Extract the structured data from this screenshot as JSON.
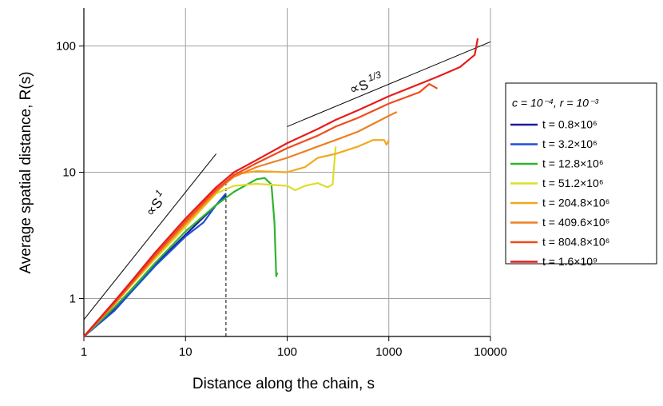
{
  "chart_data": {
    "type": "line",
    "log_x": true,
    "log_y": true,
    "grid": true,
    "x_label": "Distance along the chain, s",
    "y_label": "Average spatial distance, R(s)",
    "xlim": [
      1,
      10000
    ],
    "ylim": [
      0.5,
      200
    ],
    "xticks": [
      1,
      10,
      100,
      1000,
      10000
    ],
    "yticks": [
      1,
      10,
      100
    ],
    "legend_title": "c = 10⁻⁴, r = 10⁻³",
    "legend_position": "right",
    "series": [
      {
        "name": "t = 0.8×10⁶",
        "color": "#1a1a9c",
        "x": [
          1,
          2,
          3,
          5,
          10,
          20,
          25
        ],
        "values": [
          0.5,
          0.82,
          1.2,
          1.85,
          3.2,
          5.5,
          6.5
        ]
      },
      {
        "name": "t = 3.2×10⁶",
        "color": "#1f4fd8",
        "x": [
          1,
          2,
          3,
          5,
          10,
          15,
          20,
          25
        ],
        "values": [
          0.5,
          0.8,
          1.15,
          1.8,
          3.1,
          4,
          5.5,
          6.8
        ]
      },
      {
        "name": "t = 12.8×10⁶",
        "color": "#2db42d",
        "x": [
          1,
          2,
          3,
          5,
          10,
          20,
          30,
          50,
          60,
          70,
          75,
          78,
          80
        ],
        "values": [
          0.5,
          0.85,
          1.2,
          1.9,
          3.4,
          5.5,
          7,
          8.8,
          9,
          8,
          4,
          1.5,
          1.6
        ]
      },
      {
        "name": "t = 51.2×10⁶",
        "color": "#dede2a",
        "x": [
          1,
          2,
          3,
          5,
          10,
          20,
          30,
          50,
          100,
          120,
          150,
          200,
          250,
          280,
          300
        ],
        "values": [
          0.5,
          0.9,
          1.3,
          2.05,
          3.7,
          6.8,
          7.8,
          8.1,
          7.8,
          7.2,
          7.8,
          8.2,
          7.6,
          8,
          16
        ]
      },
      {
        "name": "t = 204.8×10⁶",
        "color": "#f2a81e",
        "x": [
          1,
          2,
          3,
          5,
          10,
          20,
          30,
          50,
          100,
          150,
          200,
          300,
          500,
          700,
          900,
          950,
          1000
        ],
        "values": [
          0.5,
          0.9,
          1.32,
          2.1,
          3.85,
          6.9,
          9.6,
          10.2,
          10,
          11,
          13,
          14,
          16,
          18,
          18,
          16.5,
          18
        ]
      },
      {
        "name": "t = 409.6×10⁶",
        "color": "#ef7f22",
        "x": [
          1,
          2,
          3,
          5,
          10,
          20,
          30,
          50,
          100,
          200,
          300,
          500,
          1000,
          1200
        ],
        "values": [
          0.5,
          0.9,
          1.33,
          2.15,
          3.95,
          7.1,
          9.2,
          11,
          13,
          16,
          18,
          21,
          28,
          30
        ]
      },
      {
        "name": "t = 804.8×10⁶",
        "color": "#f04b1b",
        "x": [
          1,
          2,
          3,
          5,
          10,
          20,
          30,
          50,
          100,
          200,
          300,
          500,
          1000,
          2000,
          2500,
          3000
        ],
        "values": [
          0.5,
          0.93,
          1.35,
          2.2,
          4.1,
          7.3,
          9.5,
          11.8,
          15.5,
          19.5,
          23,
          27,
          35,
          43,
          50,
          46
        ]
      },
      {
        "name": "t = 1.6×10⁹",
        "color": "#e61c1c",
        "x": [
          1,
          2,
          3,
          5,
          10,
          20,
          30,
          50,
          100,
          200,
          300,
          500,
          1000,
          2000,
          3000,
          5000,
          7000,
          7500
        ],
        "values": [
          0.5,
          0.95,
          1.4,
          2.3,
          4.3,
          7.6,
          10,
          12.5,
          17,
          22,
          26,
          31,
          40,
          50,
          57,
          68,
          85,
          115
        ]
      }
    ],
    "reference_lines": [
      {
        "x": [
          1,
          20
        ],
        "values": [
          0.68,
          14
        ]
      },
      {
        "x": [
          100,
          10000
        ],
        "values": [
          23,
          108
        ]
      }
    ],
    "dashed_line": {
      "x": [
        25,
        25
      ],
      "values": [
        0.5,
        8.8
      ]
    },
    "annotations": [
      {
        "text": "∝S",
        "exponent": "1"
      },
      {
        "text": "∝S",
        "exponent": "1/3"
      }
    ]
  }
}
